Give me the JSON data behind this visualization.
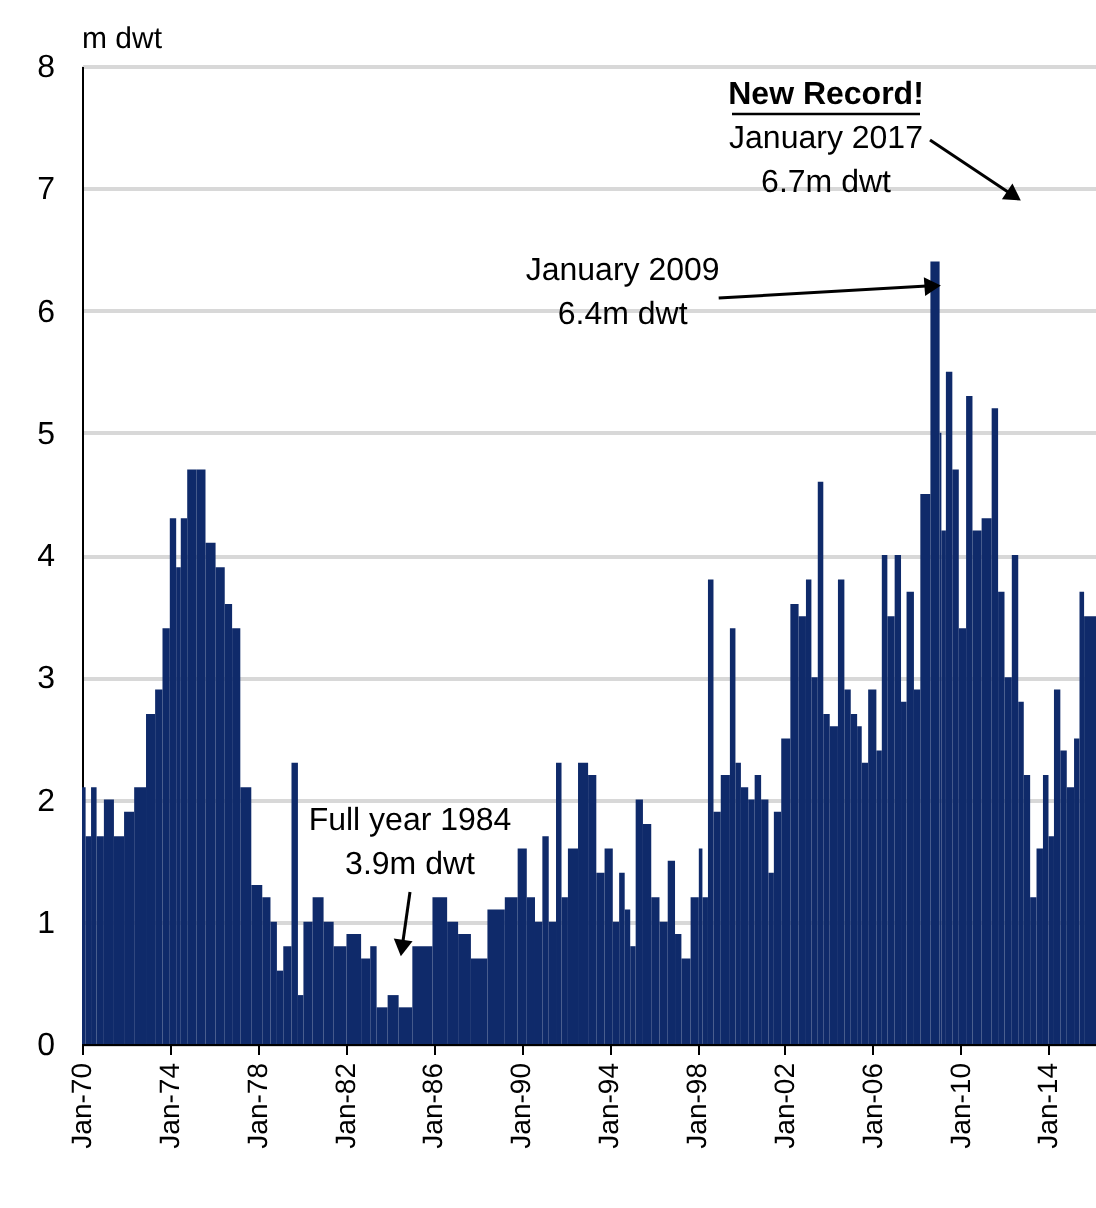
{
  "chart_data": {
    "type": "bar",
    "ylabel": "m dwt",
    "color": "#0f2a6a",
    "grid": "y",
    "xlim": [
      "1970-01",
      "2016-03"
    ],
    "ylim": [
      0,
      8
    ],
    "yticks": [
      0,
      1,
      2,
      3,
      4,
      5,
      6,
      7,
      8
    ],
    "xticks": [
      {
        "value": "1970-01",
        "label": "Jan-70"
      },
      {
        "value": "1974-01",
        "label": "Jan-74"
      },
      {
        "value": "1978-01",
        "label": "Jan-78"
      },
      {
        "value": "1982-01",
        "label": "Jan-82"
      },
      {
        "value": "1986-01",
        "label": "Jan-86"
      },
      {
        "value": "1990-01",
        "label": "Jan-90"
      },
      {
        "value": "1994-01",
        "label": "Jan-94"
      },
      {
        "value": "1998-01",
        "label": "Jan-98"
      },
      {
        "value": "2002-01",
        "label": "Jan-02"
      },
      {
        "value": "2006-01",
        "label": "Jan-06"
      },
      {
        "value": "2010-01",
        "label": "Jan-10"
      },
      {
        "value": "2014-01",
        "label": "Jan-14"
      }
    ],
    "x": [
      "1970-01",
      "1970-05",
      "1970-07",
      "1970-11",
      "1971-03",
      "1971-10",
      "1972-02",
      "1972-09",
      "1973-03",
      "1973-07",
      "1973-11",
      "1974-03",
      "1974-06",
      "1974-08",
      "1975-01",
      "1975-06",
      "1975-11",
      "1976-05",
      "1976-09",
      "1977-01",
      "1977-06",
      "1978-01",
      "1978-06",
      "1978-10",
      "1979-01",
      "1979-05",
      "1979-10",
      "1979-12",
      "1980-04",
      "1980-10",
      "1981-04",
      "1981-09",
      "1982-06",
      "1983-01",
      "1983-04",
      "1983-08",
      "1984-04",
      "1984-08",
      "1985-07",
      "1986-06",
      "1986-11",
      "1987-06",
      "1988-01",
      "1988-12",
      "1989-08",
      "1990-02",
      "1990-06",
      "1990-11",
      "1991-02",
      "1991-06",
      "1991-10",
      "1991-12",
      "1992-05",
      "1992-11",
      "1993-04",
      "1993-08",
      "1994-01",
      "1994-05",
      "1994-08",
      "1994-11",
      "1995-02",
      "1995-05",
      "1995-10",
      "1996-02",
      "1996-07",
      "1996-11",
      "1997-03",
      "1997-06",
      "1998-01",
      "1998-03",
      "1998-05",
      "1998-09",
      "1998-11",
      "1999-05",
      "1999-09",
      "1999-11",
      "2000-03",
      "2000-07",
      "2000-10",
      "2001-02",
      "2001-06",
      "2001-08",
      "2002-02",
      "2002-06",
      "2002-11",
      "2003-02",
      "2003-05",
      "2003-09",
      "2003-11",
      "2004-04",
      "2004-08",
      "2004-11",
      "2005-03",
      "2005-06",
      "2005-08",
      "2006-01",
      "2006-05",
      "2006-07",
      "2006-11",
      "2007-03",
      "2007-06",
      "2007-09",
      "2008-02",
      "2008-04",
      "2009-01",
      "2009-02",
      "2009-03",
      "2009-07",
      "2009-10",
      "2010-02",
      "2010-06",
      "2010-09",
      "2011-04",
      "2011-08",
      "2011-11",
      "2012-03",
      "2012-07",
      "2012-10",
      "2013-01",
      "2013-05",
      "2013-08",
      "2013-12",
      "2014-02",
      "2014-06",
      "2014-09",
      "2015-01",
      "2015-05",
      "2015-07",
      "2015-10"
    ],
    "values": [
      2.1,
      1.7,
      2.1,
      1.7,
      2.0,
      1.7,
      1.9,
      2.1,
      2.7,
      2.9,
      3.4,
      4.3,
      3.9,
      4.3,
      4.7,
      4.7,
      4.1,
      3.9,
      3.6,
      3.4,
      2.1,
      1.3,
      1.2,
      1.0,
      0.6,
      0.8,
      2.3,
      0.4,
      1.0,
      1.2,
      1.0,
      0.8,
      0.9,
      0.7,
      0.8,
      0.3,
      0.4,
      0.3,
      0.8,
      1.2,
      1.0,
      0.9,
      0.7,
      1.1,
      1.2,
      1.6,
      1.2,
      1.0,
      1.7,
      1.0,
      2.3,
      1.2,
      1.6,
      2.3,
      2.2,
      1.4,
      1.6,
      1.0,
      1.4,
      1.1,
      0.8,
      2.0,
      1.8,
      1.2,
      1.0,
      1.5,
      0.9,
      0.7,
      1.2,
      1.6,
      1.2,
      3.8,
      1.9,
      2.2,
      3.4,
      2.3,
      2.1,
      2.0,
      2.2,
      2.0,
      1.4,
      1.9,
      2.5,
      3.6,
      3.5,
      3.8,
      3.0,
      4.6,
      2.7,
      2.6,
      3.8,
      2.9,
      2.7,
      2.6,
      2.3,
      2.9,
      2.4,
      4.0,
      3.5,
      4.0,
      2.8,
      3.7,
      2.9,
      4.5,
      6.4,
      5.0,
      4.2,
      5.5,
      4.7,
      3.4,
      5.3,
      4.2,
      4.3,
      5.2,
      3.7,
      3.0,
      4.0,
      2.8,
      2.2,
      1.2,
      1.6,
      2.2,
      1.7,
      2.9,
      2.4,
      2.1,
      2.5,
      3.7,
      3.5
    ],
    "annotations": [
      "New Record!\nJanuary 2017\n6.7m dwt",
      {
        "text": "January 2009\n6.4m dwt",
        "x": "2009-01",
        "y": 6.2
      },
      "Full year 1984\n3.9m dwt"
    ]
  }
}
